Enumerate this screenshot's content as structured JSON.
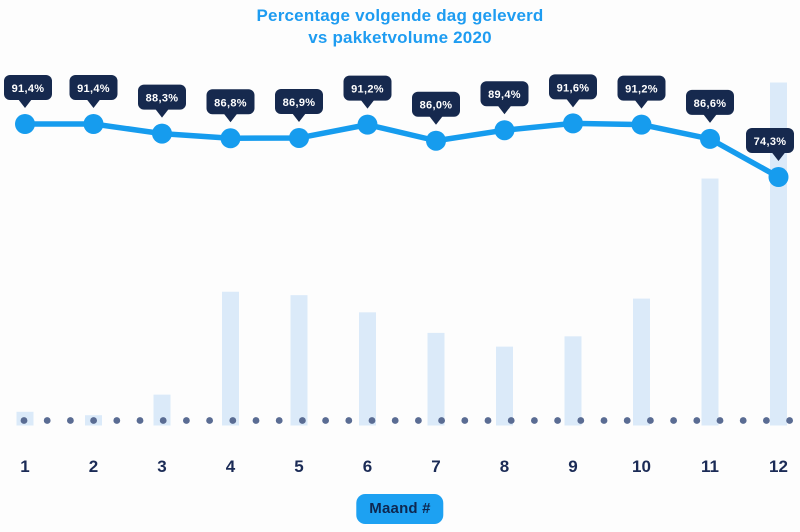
{
  "title": {
    "line1": "Percentage volgende dag geleverd",
    "line2": "vs pakketvolume 2020"
  },
  "x_axis": {
    "badge_label": "Maand #"
  },
  "colors": {
    "title": "#1e9cf1",
    "accent_blue": "#169cee",
    "tooltip_bg": "#16294e",
    "tooltip_text": "#ffffff",
    "bar_fill": "#dbeaf9",
    "baseline_dot": "#5a6c93",
    "axis_label": "#1b2b56",
    "badge_bg": "#1da1f2",
    "badge_text": "#0e2750",
    "background": "#fdfdfd"
  },
  "chart_data": {
    "type": "line+bar combo",
    "title": "Percentage volgende dag geleverd vs pakketvolume 2020",
    "xlabel": "Maand #",
    "ylabel": "",
    "categories": [
      "1",
      "2",
      "3",
      "4",
      "5",
      "6",
      "7",
      "8",
      "9",
      "10",
      "11",
      "12"
    ],
    "series": [
      {
        "name": "Percentage volgende dag geleverd",
        "type": "line",
        "unit": "%",
        "values": [
          91.4,
          91.4,
          88.3,
          86.8,
          86.9,
          91.2,
          86.0,
          89.4,
          91.6,
          91.2,
          86.6,
          74.3
        ],
        "labels": [
          "91,4%",
          "91,4%",
          "88,3%",
          "86,8%",
          "86,9%",
          "91,2%",
          "86,0%",
          "89,4%",
          "91,6%",
          "91,2%",
          "86,6%",
          "74,3%"
        ]
      },
      {
        "name": "Pakketvolume 2020",
        "type": "bar",
        "unit": "relative volume index (estimated from bar heights, max month = 100)",
        "values": [
          4,
          3,
          9,
          39,
          38,
          33,
          27,
          23,
          26,
          37,
          72,
          100
        ]
      }
    ],
    "legend": "none",
    "grid": "off",
    "baseline_style": "dotted"
  }
}
